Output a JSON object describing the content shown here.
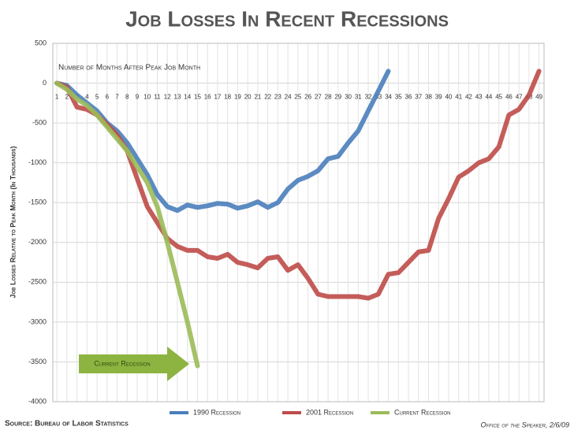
{
  "chart_data": {
    "type": "line",
    "title": "Job Losses In Recent Recessions",
    "x_annotation": "Number of Months After Peak Job Month",
    "ylabel": "Job Losses Relative to Peak Month (In Thousands)",
    "arrow_annotation": "Current Recession",
    "source": "Source: Bureau of Labor Statistics",
    "credit": "Office of the Speaker, 2/6/09",
    "x": [
      1,
      2,
      3,
      4,
      5,
      6,
      7,
      8,
      9,
      10,
      11,
      12,
      13,
      14,
      15,
      16,
      17,
      18,
      19,
      20,
      21,
      22,
      23,
      24,
      25,
      26,
      27,
      28,
      29,
      30,
      31,
      32,
      33,
      34,
      35,
      36,
      37,
      38,
      39,
      40,
      41,
      42,
      43,
      44,
      45,
      46,
      47,
      48,
      49
    ],
    "xlim": [
      0.6,
      49.5
    ],
    "xticks": [
      1,
      2,
      3,
      4,
      5,
      6,
      7,
      8,
      9,
      10,
      11,
      12,
      13,
      14,
      15,
      16,
      17,
      18,
      19,
      20,
      21,
      22,
      23,
      24,
      25,
      26,
      27,
      28,
      29,
      30,
      31,
      32,
      33,
      34,
      35,
      36,
      37,
      38,
      39,
      40,
      41,
      42,
      43,
      44,
      45,
      46,
      47,
      48,
      49
    ],
    "ylim": [
      -4000,
      500
    ],
    "yticks": [
      -4000,
      -3500,
      -3000,
      -2500,
      -2000,
      -1500,
      -1000,
      -500,
      0,
      500
    ],
    "grid": true,
    "legend": "bottom",
    "series": [
      {
        "name": "1990 Recession",
        "color": "#4a7ebb",
        "values": [
          0,
          -30,
          -150,
          -250,
          -350,
          -500,
          -600,
          -750,
          -950,
          -1150,
          -1400,
          -1550,
          -1600,
          -1530,
          -1560,
          -1540,
          -1510,
          -1520,
          -1570,
          -1540,
          -1490,
          -1560,
          -1500,
          -1330,
          -1220,
          -1170,
          -1100,
          -950,
          -920,
          -750,
          -600,
          -350,
          -100,
          150,
          null,
          null,
          null,
          null,
          null,
          null,
          null,
          null,
          null,
          null,
          null,
          null,
          null,
          null,
          null
        ]
      },
      {
        "name": "2001 Recession",
        "color": "#be4b48",
        "values": [
          0,
          -50,
          -300,
          -330,
          -400,
          -520,
          -650,
          -850,
          -1200,
          -1550,
          -1750,
          -1950,
          -2050,
          -2100,
          -2100,
          -2180,
          -2200,
          -2150,
          -2250,
          -2280,
          -2320,
          -2200,
          -2180,
          -2350,
          -2280,
          -2450,
          -2650,
          -2680,
          -2680,
          -2680,
          -2680,
          -2700,
          -2650,
          -2400,
          -2380,
          -2250,
          -2120,
          -2100,
          -1700,
          -1450,
          -1180,
          -1100,
          -1000,
          -950,
          -800,
          -400,
          -330,
          -150,
          150
        ]
      },
      {
        "name": "Current Recession",
        "color": "#9bbb59",
        "values": [
          0,
          -80,
          -200,
          -280,
          -400,
          -550,
          -700,
          -850,
          -1050,
          -1250,
          -1550,
          -2000,
          -2500,
          -3000,
          -3550,
          null,
          null,
          null,
          null,
          null,
          null,
          null,
          null,
          null,
          null,
          null,
          null,
          null,
          null,
          null,
          null,
          null,
          null,
          null,
          null,
          null,
          null,
          null,
          null,
          null,
          null,
          null,
          null,
          null,
          null,
          null,
          null,
          null,
          null
        ]
      }
    ]
  }
}
